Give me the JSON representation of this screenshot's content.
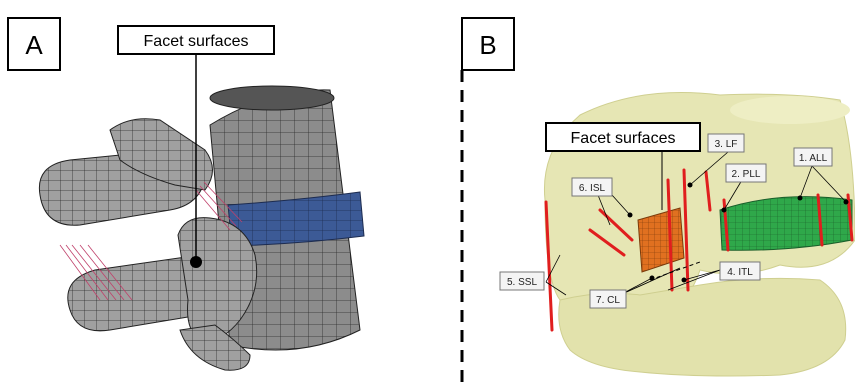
{
  "panel_a": {
    "label": "A",
    "callout": "Facet surfaces"
  },
  "panel_b": {
    "label": "B",
    "callout": "Facet surfaces",
    "ligaments": {
      "all": "1. ALL",
      "pll": "2. PLL",
      "lf": "3. LF",
      "itl": "4. ITL",
      "ssl": "5. SSL",
      "isl": "6. ISL",
      "cl": "7. CL"
    }
  },
  "colors": {
    "mesh_gray": "#8f8f8f",
    "disc_blue": "#3c5a96",
    "bone_cream": "#e6e6b4",
    "ligament_red": "#e01e1e",
    "disc_green": "#2fa84a",
    "facet_orange": "#e07020"
  }
}
